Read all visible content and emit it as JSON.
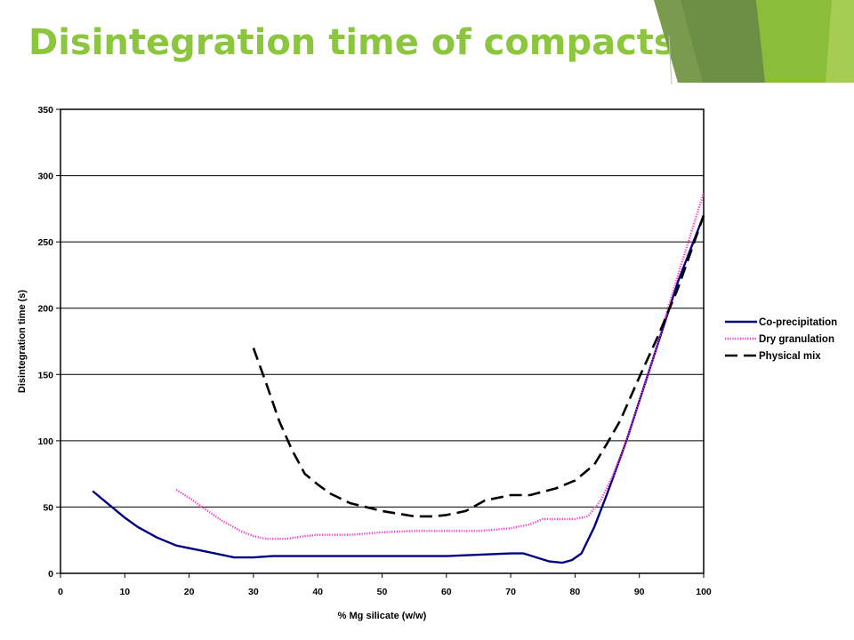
{
  "slide": {
    "title": "Disintegration time of compacts",
    "accent_color": "#8cc63f"
  },
  "chart_data": {
    "type": "line",
    "title": "",
    "xlabel": "% Mg silicate (w/w)",
    "ylabel": "Disintegration time (s)",
    "xlim": [
      0,
      100
    ],
    "ylim": [
      0,
      350
    ],
    "xticks": [
      0,
      10,
      20,
      30,
      40,
      50,
      60,
      70,
      80,
      90,
      100
    ],
    "yticks": [
      0,
      50,
      100,
      150,
      200,
      250,
      300,
      350
    ],
    "grid": "horizontal",
    "legend": "right",
    "series": [
      {
        "name": "Co-precipitation",
        "color": "#000080",
        "style": "solid",
        "points": [
          [
            5,
            62
          ],
          [
            8,
            50
          ],
          [
            10,
            42
          ],
          [
            12,
            35
          ],
          [
            15,
            27
          ],
          [
            18,
            21
          ],
          [
            20,
            19
          ],
          [
            22,
            17
          ],
          [
            25,
            14
          ],
          [
            27,
            12
          ],
          [
            30,
            12
          ],
          [
            33,
            13
          ],
          [
            40,
            13
          ],
          [
            50,
            13
          ],
          [
            60,
            13
          ],
          [
            65,
            14
          ],
          [
            70,
            15
          ],
          [
            72,
            15
          ],
          [
            74,
            12
          ],
          [
            76,
            9
          ],
          [
            78,
            8
          ],
          [
            79.5,
            10
          ],
          [
            81,
            15
          ],
          [
            83,
            35
          ],
          [
            85,
            60
          ],
          [
            88,
            100
          ],
          [
            92,
            160
          ],
          [
            96,
            220
          ],
          [
            100,
            270
          ]
        ]
      },
      {
        "name": "Dry granulation",
        "color": "#ff33cc",
        "style": "dotted",
        "points": [
          [
            18,
            63
          ],
          [
            20,
            57
          ],
          [
            22,
            50
          ],
          [
            25,
            40
          ],
          [
            28,
            32
          ],
          [
            30,
            28
          ],
          [
            32,
            26
          ],
          [
            35,
            26
          ],
          [
            38,
            28
          ],
          [
            40,
            29
          ],
          [
            45,
            29
          ],
          [
            50,
            31
          ],
          [
            55,
            32
          ],
          [
            60,
            32
          ],
          [
            65,
            32
          ],
          [
            70,
            34
          ],
          [
            73,
            37
          ],
          [
            75,
            41
          ],
          [
            80,
            41
          ],
          [
            82,
            43
          ],
          [
            84,
            55
          ],
          [
            86,
            75
          ],
          [
            88,
            100
          ],
          [
            92,
            160
          ],
          [
            96,
            225
          ],
          [
            100,
            287
          ]
        ]
      },
      {
        "name": "Physical mix",
        "color": "#000000",
        "style": "dashed",
        "points": [
          [
            30,
            170
          ],
          [
            32,
            143
          ],
          [
            34,
            115
          ],
          [
            36,
            93
          ],
          [
            38,
            75
          ],
          [
            40,
            67
          ],
          [
            42,
            60
          ],
          [
            45,
            53
          ],
          [
            50,
            47
          ],
          [
            55,
            43
          ],
          [
            58,
            43
          ],
          [
            60,
            44
          ],
          [
            63,
            47
          ],
          [
            66,
            55
          ],
          [
            70,
            59
          ],
          [
            73,
            59
          ],
          [
            77,
            64
          ],
          [
            80,
            70
          ],
          [
            83,
            82
          ],
          [
            85,
            98
          ],
          [
            87,
            115
          ],
          [
            90,
            148
          ],
          [
            93,
            180
          ],
          [
            96,
            215
          ],
          [
            100,
            270
          ]
        ]
      }
    ]
  }
}
